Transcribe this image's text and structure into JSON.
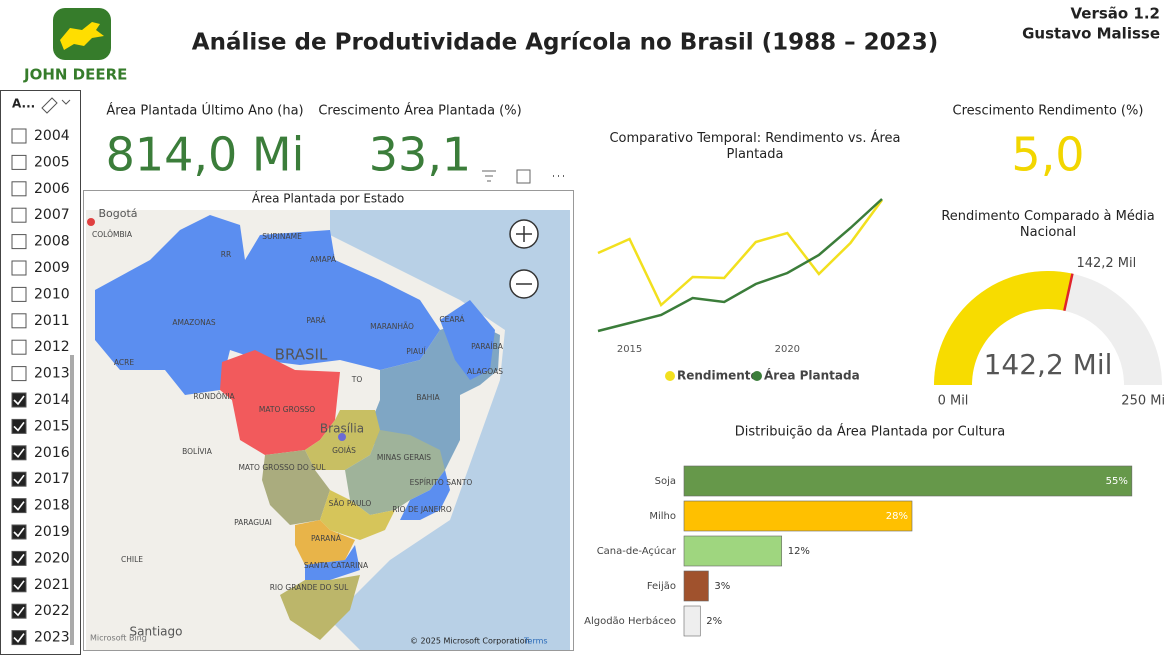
{
  "header": {
    "title": "Análise de Produtividade Agrícola no Brasil (1988 – 2023)",
    "version": "Versão 1.2",
    "author": "Gustavo Malisse",
    "logo_text": "JOHN DEERE"
  },
  "slicer": {
    "header": "A...",
    "items": [
      {
        "label": "2004",
        "checked": false
      },
      {
        "label": "2005",
        "checked": false
      },
      {
        "label": "2006",
        "checked": false
      },
      {
        "label": "2007",
        "checked": false
      },
      {
        "label": "2008",
        "checked": false
      },
      {
        "label": "2009",
        "checked": false
      },
      {
        "label": "2010",
        "checked": false
      },
      {
        "label": "2011",
        "checked": false
      },
      {
        "label": "2012",
        "checked": false
      },
      {
        "label": "2013",
        "checked": false
      },
      {
        "label": "2014",
        "checked": true
      },
      {
        "label": "2015",
        "checked": true
      },
      {
        "label": "2016",
        "checked": true
      },
      {
        "label": "2017",
        "checked": true
      },
      {
        "label": "2018",
        "checked": true
      },
      {
        "label": "2019",
        "checked": true
      },
      {
        "label": "2020",
        "checked": true
      },
      {
        "label": "2021",
        "checked": true
      },
      {
        "label": "2022",
        "checked": true
      },
      {
        "label": "2023",
        "checked": true
      }
    ]
  },
  "kpis": [
    {
      "title": "Área Plantada Último Ano (ha)",
      "value": "814,0 Mi",
      "color": "#3b7d3a"
    },
    {
      "title": "Crescimento Área Plantada (%)",
      "value": "33,1",
      "color": "#3b7d3a"
    },
    {
      "title": "Crescimento Rendimento (%)",
      "value": "5,0",
      "color": "#f2d600"
    }
  ],
  "map": {
    "title": "Área Plantada por Estado",
    "labels": [
      "Bogotá",
      "COLÔMBIA",
      "SURINAME",
      "RR",
      "AMAPÁ",
      "AMAZONAS",
      "PARÁ",
      "MARANHÃO",
      "CEARÁ",
      "PIAUÍ",
      "PARAÍBA",
      "ALAGOAS",
      "BRASIL",
      "ACRE",
      "RONDÔNIA",
      "TO",
      "BAHIA",
      "MATO GROSSO",
      "Brasília",
      "GOIÁS",
      "MINAS GERAIS",
      "BOLÍVIA",
      "MATO GROSSO DO SUL",
      "ESPÍRITO SANTO",
      "SÃO PAULO",
      "RIO DE JANEIRO",
      "PARAGUAI",
      "PARANÁ",
      "CHILE",
      "SANTA CATARINA",
      "RIO GRANDE DO SUL",
      "Santiago"
    ],
    "copyright": "© 2025 Microsoft Corporation",
    "terms": "Terms",
    "brand": "Microsoft Bing"
  },
  "line_chart": {
    "type": "line",
    "title": "Comparativo Temporal: Rendimento vs. Área Plantada",
    "x": [
      2014,
      2015,
      2016,
      2017,
      2018,
      2019,
      2020,
      2021,
      2022,
      2023
    ],
    "xlim": [
      2014,
      2023
    ],
    "xticks": [
      2015,
      2020
    ],
    "ylim": [
      0,
      150
    ],
    "series": [
      {
        "name": "Rendimento",
        "color": "#f2e01e",
        "values": [
          87,
          101,
          35,
          63,
          62,
          98,
          107,
          66,
          97,
          140
        ]
      },
      {
        "name": "Área Plantada",
        "color": "#3b7d3a",
        "values": [
          9,
          17,
          25,
          42,
          38,
          56,
          67,
          85,
          112,
          141
        ]
      }
    ]
  },
  "gauge": {
    "type": "gauge",
    "title": "Rendimento Comparado à Média Nacional",
    "color": "#f7dc00",
    "track_color": "#eeeeee",
    "target_color": "#e0242b",
    "min": {
      "value": 0,
      "label": "0 Mil"
    },
    "max": {
      "value": 250,
      "label": "250 Mil"
    },
    "value": {
      "value": 142.2,
      "label": "142,2 Mil"
    },
    "target": {
      "value": 142.2,
      "label": "142,2 Mil"
    }
  },
  "bar_chart": {
    "type": "bar",
    "title": "Distribuição da Área Plantada por Cultura",
    "categories": [
      "Soja",
      "Milho",
      "Cana-de-Açúcar",
      "Feijão",
      "Algodão Herbáceo"
    ],
    "values": [
      55,
      28,
      12,
      3,
      2
    ],
    "value_labels": [
      "55%",
      "28%",
      "12%",
      "3%",
      "2%"
    ],
    "colors": [
      "#66984a",
      "#ffc000",
      "#9fd67f",
      "#a0522d",
      "#eeeeee"
    ],
    "xlim": [
      0,
      56
    ]
  }
}
